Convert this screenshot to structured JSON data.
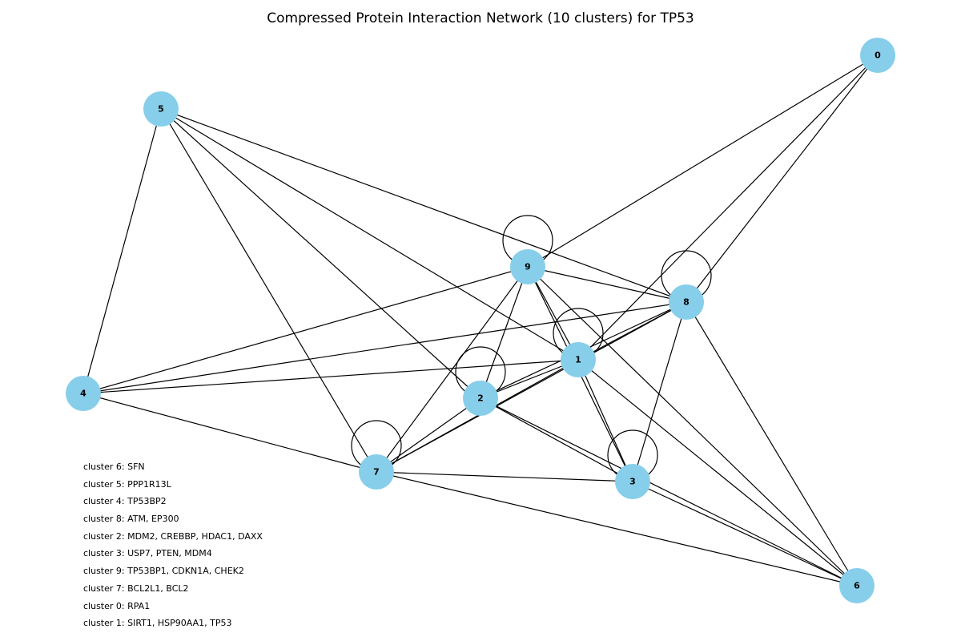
{
  "title": "Compressed Protein Interaction Network (10 clusters) for TP53",
  "node_color": "#87CEEB",
  "edge_color": "#000000",
  "nodes": [
    "0",
    "1",
    "2",
    "3",
    "4",
    "5",
    "6",
    "7",
    "8",
    "9"
  ],
  "edges": [
    [
      "0",
      "9"
    ],
    [
      "0",
      "1"
    ],
    [
      "0",
      "8"
    ],
    [
      "5",
      "4"
    ],
    [
      "5",
      "7"
    ],
    [
      "5",
      "2"
    ],
    [
      "5",
      "1"
    ],
    [
      "5",
      "8"
    ],
    [
      "9",
      "8"
    ],
    [
      "9",
      "1"
    ],
    [
      "9",
      "3"
    ],
    [
      "9",
      "6"
    ],
    [
      "9",
      "2"
    ],
    [
      "9",
      "7"
    ],
    [
      "9",
      "4"
    ],
    [
      "8",
      "4"
    ],
    [
      "8",
      "2"
    ],
    [
      "8",
      "7"
    ],
    [
      "8",
      "3"
    ],
    [
      "8",
      "6"
    ],
    [
      "8",
      "1"
    ],
    [
      "1",
      "4"
    ],
    [
      "1",
      "2"
    ],
    [
      "1",
      "7"
    ],
    [
      "1",
      "3"
    ],
    [
      "1",
      "6"
    ],
    [
      "2",
      "7"
    ],
    [
      "2",
      "3"
    ],
    [
      "2",
      "6"
    ],
    [
      "4",
      "7"
    ],
    [
      "7",
      "3"
    ],
    [
      "7",
      "6"
    ],
    [
      "3",
      "6"
    ]
  ],
  "self_loops": [
    "9",
    "8",
    "1",
    "2",
    "7",
    "3"
  ],
  "legend": [
    "cluster 6: SFN",
    "cluster 5: PPP1R13L",
    "cluster 4: TP53BP2",
    "cluster 8: ATM, EP300",
    "cluster 2: MDM2, CREBBP, HDAC1, DAXX",
    "cluster 3: USP7, PTEN, MDM4",
    "cluster 9: TP53BP1, CDKN1A, CHEK2",
    "cluster 7: BCL2L1, BCL2",
    "cluster 0: RPA1",
    "cluster 1: SIRT1, HSP90AA1, TP53"
  ]
}
